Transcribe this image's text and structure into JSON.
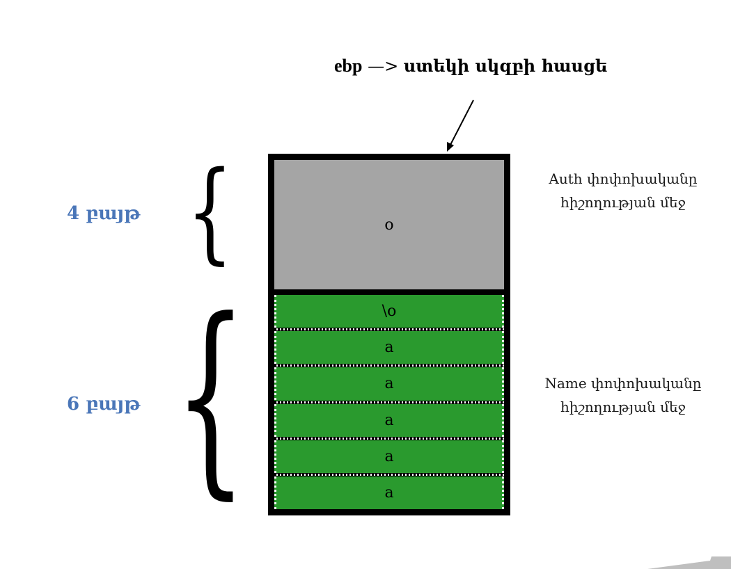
{
  "title": {
    "register": "ebp",
    "arrow": "—>",
    "description": "ստեկի սկզբի հասցե"
  },
  "size_labels": {
    "auth": "4 բայթ",
    "name": "6 բայթ"
  },
  "auth_cell": {
    "value": "o"
  },
  "name_cells": [
    "\\o",
    "a",
    "a",
    "a",
    "a",
    "a"
  ],
  "notes": {
    "auth": {
      "line1": "Auth փոփոխականը",
      "line2": "հիշողության մեջ"
    },
    "name": {
      "line1": "Name փոփոխականը",
      "line2": "հիշողության մեջ"
    }
  },
  "colors": {
    "auth_cell": "#a5a5a5",
    "name_cells": "#2a9a2e",
    "size_label": "#4a76b8",
    "border": "#000000"
  }
}
